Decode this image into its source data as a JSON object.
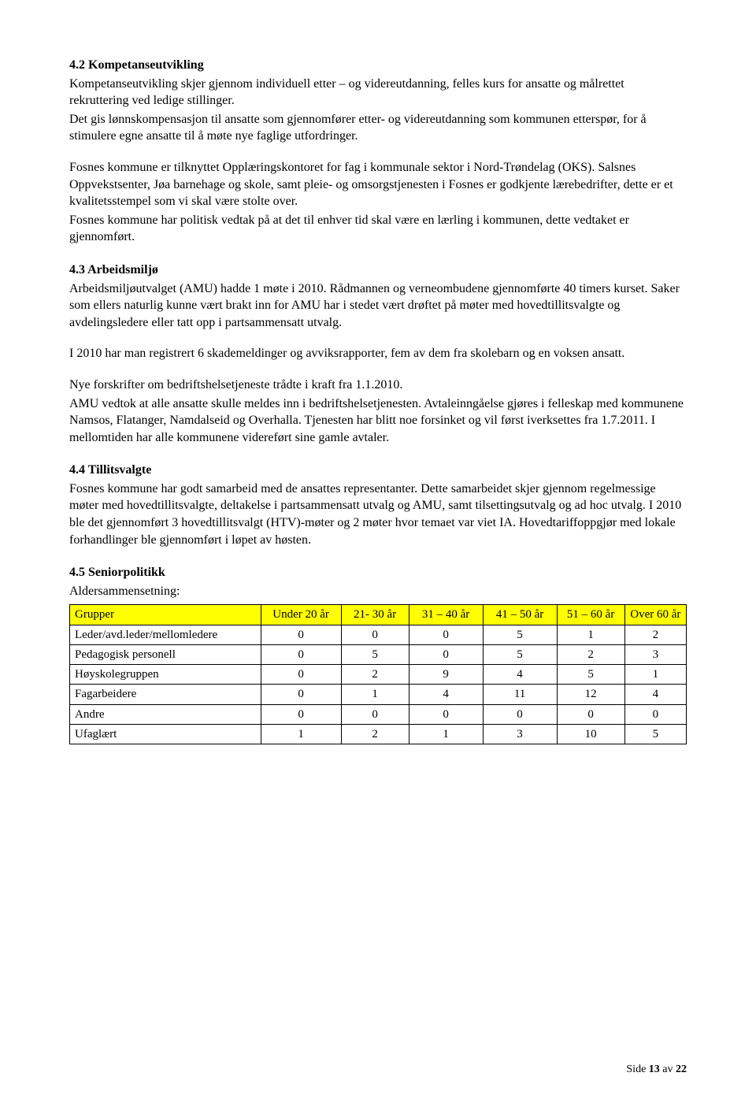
{
  "sections": {
    "s42": {
      "heading": "4.2 Kompetanseutvikling",
      "p1": "Kompetanseutvikling skjer gjennom individuell etter – og videreutdanning, felles kurs for ansatte og målrettet rekruttering ved ledige stillinger.",
      "p2": "Det gis lønnskompensasjon til ansatte som gjennomfører etter- og videreutdanning som kommunen etterspør, for å stimulere egne ansatte til å møte nye faglige utfordringer.",
      "p3": "Fosnes kommune er tilknyttet Opplæringskontoret for fag i kommunale sektor i Nord-Trøndelag (OKS). Salsnes Oppvekstsenter, Jøa barnehage og skole, samt pleie- og omsorgstjenesten i Fosnes er godkjente lærebedrifter, dette er et kvalitetsstempel som vi skal være stolte over.",
      "p4": "Fosnes kommune har politisk vedtak på at det til enhver tid skal være en lærling i kommunen, dette vedtaket er gjennomført."
    },
    "s43": {
      "heading": "4.3 Arbeidsmiljø",
      "p1": "Arbeidsmiljøutvalget (AMU) hadde 1 møte i 2010. Rådmannen og verneombudene gjennomførte 40 timers kurset. Saker som ellers naturlig kunne vært brakt inn for AMU har i stedet vært drøftet på møter med hovedtillitsvalgte og avdelingsledere eller tatt opp i partsammensatt utvalg.",
      "p2": "I 2010 har man registrert 6 skademeldinger og avviksrapporter, fem av dem fra skolebarn og en voksen ansatt.",
      "p3": "Nye forskrifter om bedriftshelsetjeneste trådte i kraft fra 1.1.2010.",
      "p4": "AMU vedtok at alle ansatte skulle meldes inn i bedriftshelsetjenesten. Avtaleinngåelse gjøres i felleskap med kommunene Namsos, Flatanger, Namdalseid og Overhalla. Tjenesten har blitt noe forsinket og vil først iverksettes fra 1.7.2011. I mellomtiden har alle kommunene videreført sine gamle avtaler."
    },
    "s44": {
      "heading": "4.4 Tillitsvalgte",
      "p1": "Fosnes kommune har godt samarbeid med de ansattes representanter. Dette samarbeidet skjer gjennom regelmessige møter med hovedtillitsvalgte, deltakelse i partsammensatt utvalg og AMU, samt tilsettingsutvalg og ad hoc utvalg. I 2010 ble det gjennomført 3 hovedtillitsvalgt (HTV)-møter og 2 møter hvor temaet var viet IA. Hovedtariffoppgjør med lokale forhandlinger ble gjennomført i løpet av høsten."
    },
    "s45": {
      "heading": "4.5 Seniorpolitikk",
      "intro": "Aldersammensetning:"
    }
  },
  "table": {
    "columns": [
      "Grupper",
      "Under 20 år",
      "21- 30 år",
      "31 – 40 år",
      "41 – 50 år",
      "51 – 60 år",
      "Over 60 år"
    ],
    "rows": [
      [
        "Leder/avd.leder/mellomledere",
        "0",
        "0",
        "0",
        "5",
        "1",
        "2"
      ],
      [
        "Pedagogisk personell",
        "0",
        "5",
        "0",
        "5",
        "2",
        "3"
      ],
      [
        "Høyskolegruppen",
        "0",
        "2",
        "9",
        "4",
        "5",
        "1"
      ],
      [
        "Fagarbeidere",
        "0",
        "1",
        "4",
        "11",
        "12",
        "4"
      ],
      [
        "Andre",
        "0",
        "0",
        "0",
        "0",
        "0",
        "0"
      ],
      [
        "Ufaglært",
        "1",
        "2",
        "1",
        "3",
        "10",
        "5"
      ]
    ],
    "header_bg": "#ffff00",
    "col_widths": [
      "31%",
      "13%",
      "11%",
      "12%",
      "12%",
      "11%",
      "10%"
    ]
  },
  "footer": {
    "prefix": "Side ",
    "page": "13",
    "mid": " av ",
    "total": "22"
  }
}
